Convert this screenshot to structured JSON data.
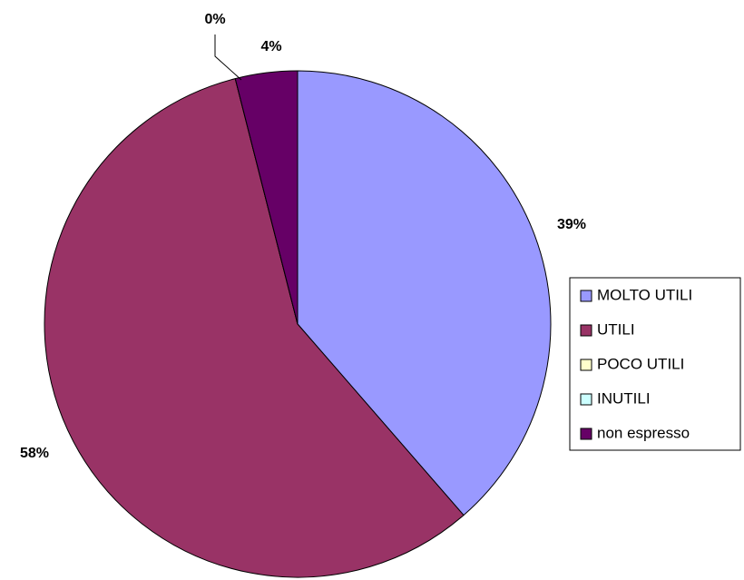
{
  "chart_data": {
    "type": "pie",
    "categories": [
      "MOLTO UTILI",
      "UTILI",
      "POCO UTILI",
      "INUTILI",
      "non espresso"
    ],
    "values": [
      39,
      58,
      0,
      0,
      4
    ],
    "value_labels": [
      "39%",
      "58%",
      "0%",
      null,
      "4%"
    ],
    "colors": [
      "#9999ff",
      "#993366",
      "#ffffcc",
      "#ccffff",
      "#660066"
    ],
    "legend": "right"
  }
}
